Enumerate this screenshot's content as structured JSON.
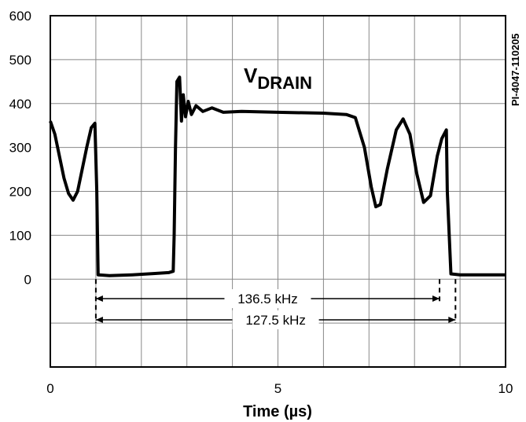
{
  "chart_data": {
    "type": "line",
    "title": "",
    "xlabel": "Time (µs)",
    "ylabel": "",
    "xlim": [
      0,
      10
    ],
    "ylim": [
      -200,
      600
    ],
    "x_ticks": [
      "0",
      "5",
      "10"
    ],
    "y_ticks": [
      "0",
      "100",
      "200",
      "300",
      "400",
      "500",
      "600"
    ],
    "grid": true,
    "series": [
      {
        "name": "VDRAIN",
        "x": [
          0.0,
          0.1,
          0.2,
          0.3,
          0.4,
          0.5,
          0.6,
          0.7,
          0.8,
          0.9,
          0.98,
          1.02,
          1.05,
          1.3,
          1.8,
          2.3,
          2.6,
          2.7,
          2.72,
          2.75,
          2.78,
          2.84,
          2.88,
          2.92,
          2.97,
          3.03,
          3.1,
          3.2,
          3.35,
          3.55,
          3.8,
          4.2,
          5.0,
          6.0,
          6.5,
          6.7,
          6.9,
          7.05,
          7.15,
          7.25,
          7.4,
          7.6,
          7.75,
          7.9,
          8.05,
          8.2,
          8.35,
          8.5,
          8.6,
          8.7,
          8.72,
          8.8,
          9.0,
          9.5,
          10.0
        ],
        "values": [
          360,
          330,
          280,
          230,
          195,
          180,
          200,
          250,
          300,
          345,
          355,
          200,
          10,
          8,
          10,
          13,
          15,
          18,
          100,
          300,
          450,
          460,
          360,
          420,
          370,
          405,
          375,
          395,
          382,
          390,
          380,
          382,
          380,
          378,
          375,
          368,
          300,
          210,
          165,
          170,
          250,
          340,
          365,
          330,
          240,
          175,
          190,
          280,
          320,
          340,
          200,
          12,
          10,
          10,
          10
        ]
      }
    ],
    "trace_label": {
      "main": "V",
      "sub": "DRAIN"
    },
    "figure_id": "PI-4047-110205",
    "annotations": [
      {
        "text": "136.5 kHz",
        "x_start": 1.0,
        "x_end": 8.55
      },
      {
        "text": "127.5 kHz",
        "x_start": 1.0,
        "x_end": 8.9
      }
    ]
  }
}
